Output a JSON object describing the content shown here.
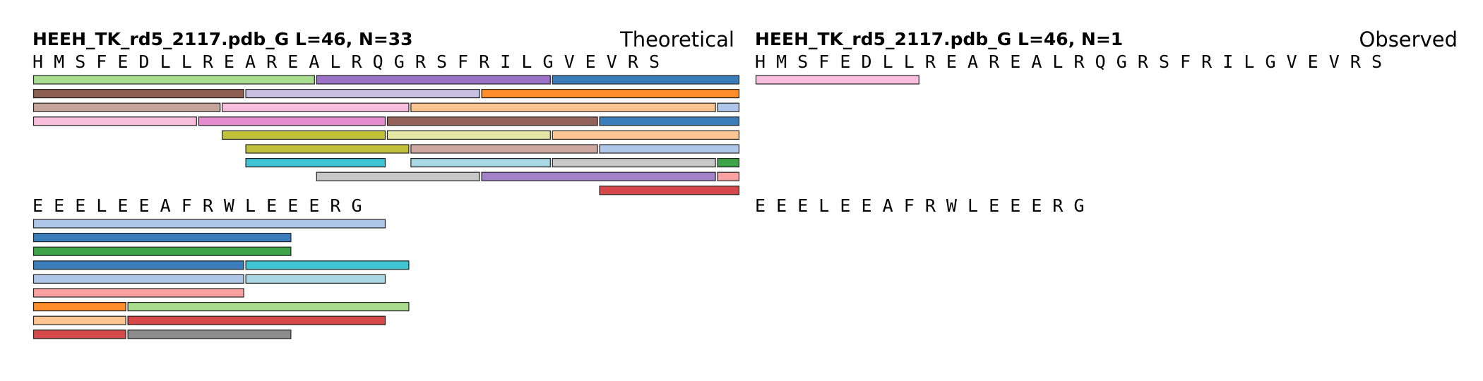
{
  "chart_data": [
    {
      "type": "bar",
      "title": "HEEH_TK_rd5_2117.pdb_G  L=46, N=33",
      "subtitle": "Theoretical",
      "sequence": "HMSFEDLLREAREALRQGRSFRILGVEVRSEEELEEAFRWLEEERG",
      "residue_lines": [
        "H M S F E D L L R E A R E A L R Q G R S F R I L G V E V R S",
        "E E E L E E A F R W L E E E R G"
      ],
      "segments": [
        {
          "start": 1,
          "end": 12,
          "row": 0,
          "color": "#a8dc8f"
        },
        {
          "start": 13,
          "end": 22,
          "row": 0,
          "color": "#9b72c7"
        },
        {
          "start": 23,
          "end": 30,
          "row": 0,
          "color": "#3a7dba"
        },
        {
          "start": 1,
          "end": 9,
          "row": 1,
          "color": "#8c5f52"
        },
        {
          "start": 10,
          "end": 19,
          "row": 1,
          "color": "#c7c0e2"
        },
        {
          "start": 20,
          "end": 30,
          "row": 1,
          "color": "#fc8d2a"
        },
        {
          "start": 1,
          "end": 8,
          "row": 2,
          "color": "#c5a59a"
        },
        {
          "start": 9,
          "end": 16,
          "row": 2,
          "color": "#f9bede"
        },
        {
          "start": 17,
          "end": 29,
          "row": 2,
          "color": "#fdc591"
        },
        {
          "start": 30,
          "end": 30,
          "row": 2,
          "color": "#aec7e8"
        },
        {
          "start": 1,
          "end": 7,
          "row": 3,
          "color": "#f9bede"
        },
        {
          "start": 8,
          "end": 15,
          "row": 3,
          "color": "#e58cd0"
        },
        {
          "start": 16,
          "end": 24,
          "row": 3,
          "color": "#946158"
        },
        {
          "start": 25,
          "end": 30,
          "row": 3,
          "color": "#3a7dba"
        },
        {
          "start": 9,
          "end": 15,
          "row": 4,
          "color": "#c1c03b"
        },
        {
          "start": 16,
          "end": 22,
          "row": 4,
          "color": "#e3e6a4"
        },
        {
          "start": 23,
          "end": 30,
          "row": 4,
          "color": "#fdc591"
        },
        {
          "start": 10,
          "end": 16,
          "row": 5,
          "color": "#c1c03b"
        },
        {
          "start": 17,
          "end": 24,
          "row": 5,
          "color": "#cea7a0"
        },
        {
          "start": 25,
          "end": 30,
          "row": 5,
          "color": "#aec7e8"
        },
        {
          "start": 10,
          "end": 15,
          "row": 6,
          "color": "#3ec4d3"
        },
        {
          "start": 17,
          "end": 22,
          "row": 6,
          "color": "#a7d8e3"
        },
        {
          "start": 23,
          "end": 29,
          "row": 6,
          "color": "#c8c8c8"
        },
        {
          "start": 30,
          "end": 30,
          "row": 6,
          "color": "#3fa34a"
        },
        {
          "start": 13,
          "end": 19,
          "row": 7,
          "color": "#c8c8c8"
        },
        {
          "start": 20,
          "end": 29,
          "row": 7,
          "color": "#a283c9"
        },
        {
          "start": 30,
          "end": 30,
          "row": 7,
          "color": "#f9a1a0"
        },
        {
          "start": 25,
          "end": 30,
          "row": 8,
          "color": "#d6474a"
        },
        {
          "start": 31,
          "end": 45,
          "row": 0,
          "color": "#aec7e8"
        },
        {
          "start": 31,
          "end": 41,
          "row": 1,
          "color": "#3a7dba"
        },
        {
          "start": 31,
          "end": 41,
          "row": 2,
          "color": "#3fa34a"
        },
        {
          "start": 31,
          "end": 39,
          "row": 3,
          "color": "#3a7dba"
        },
        {
          "start": 40,
          "end": 46,
          "row": 3,
          "color": "#3ec4d3"
        },
        {
          "start": 31,
          "end": 39,
          "row": 4,
          "color": "#aec7e8"
        },
        {
          "start": 40,
          "end": 45,
          "row": 4,
          "color": "#a7d8e3"
        },
        {
          "start": 31,
          "end": 39,
          "row": 5,
          "color": "#f9a1a0"
        },
        {
          "start": 31,
          "end": 34,
          "row": 6,
          "color": "#fc8d2a"
        },
        {
          "start": 35,
          "end": 46,
          "row": 6,
          "color": "#a8dc8f"
        },
        {
          "start": 31,
          "end": 34,
          "row": 7,
          "color": "#fdc591"
        },
        {
          "start": 35,
          "end": 45,
          "row": 7,
          "color": "#d6474a"
        },
        {
          "start": 31,
          "end": 34,
          "row": 8,
          "color": "#d6474a"
        },
        {
          "start": 35,
          "end": 41,
          "row": 8,
          "color": "#8c8c8c"
        }
      ]
    },
    {
      "type": "bar",
      "title": "HEEH_TK_rd5_2117.pdb_G  L=46, N=1",
      "subtitle": "Observed",
      "sequence": "HMSFEDLLREAREALRQGRSFRILGVEVRSEEELEEAFRWLEEERG",
      "residue_lines": [
        "H M S F E D L L R E A R E A L R Q G R S F R I L G V E V R S",
        "E E E L E E A F R W L E E E R G"
      ],
      "segments": [
        {
          "start": 1,
          "end": 7,
          "row": 0,
          "color": "#f9bede"
        }
      ]
    }
  ]
}
